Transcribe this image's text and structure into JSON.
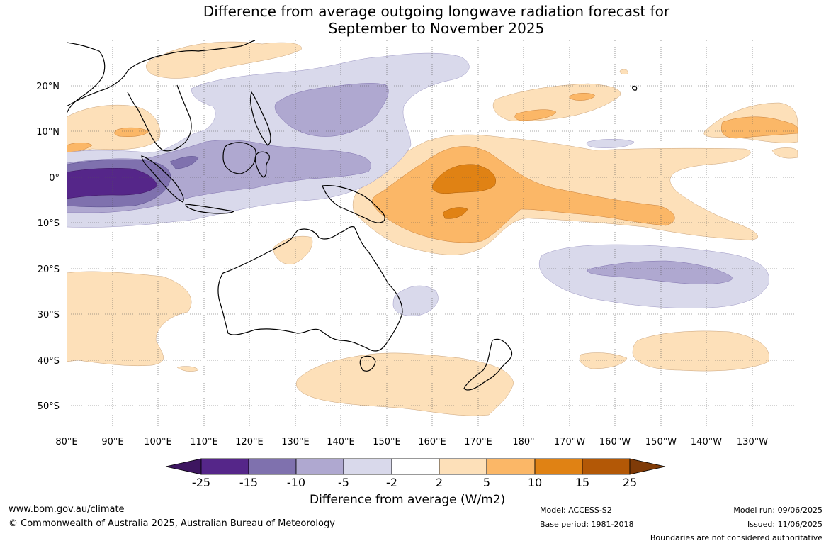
{
  "title_line1": "Difference from average outgoing longwave radiation forecast for",
  "title_line2": "September to November 2025",
  "lat_labels": [
    "20°N",
    "10°N",
    "0°",
    "10°S",
    "20°S",
    "30°S",
    "40°S",
    "50°S"
  ],
  "lon_labels": [
    "80°E",
    "90°E",
    "100°E",
    "110°E",
    "120°E",
    "130°E",
    "140°E",
    "150°E",
    "160°E",
    "170°E",
    "180°",
    "170°W",
    "160°W",
    "150°W",
    "140°W",
    "130°W"
  ],
  "colorbar": {
    "title": "Difference from average (W/m2)",
    "ticks": [
      "-25",
      "-15",
      "-10",
      "-5",
      "-2",
      "2",
      "5",
      "10",
      "15",
      "25"
    ],
    "colors": [
      "#3d1660",
      "#552689",
      "#7f71ae",
      "#afa8d0",
      "#d9d9eb",
      "#ffffff",
      "#fde0b9",
      "#fbb767",
      "#e08214",
      "#b35806",
      "#7f3b08"
    ]
  },
  "footer": {
    "site": "www.bom.gov.au/climate",
    "copyright": "© Commonwealth of Australia 2025, Australian Bureau of Meteorology",
    "model": "Model: ACCESS-S2",
    "base_period": "Base period: 1981-2018",
    "model_run": "Model run: 09/06/2025",
    "issued": "Issued: 11/06/2025",
    "disclaimer": "Boundaries are not considered authoritative"
  }
}
